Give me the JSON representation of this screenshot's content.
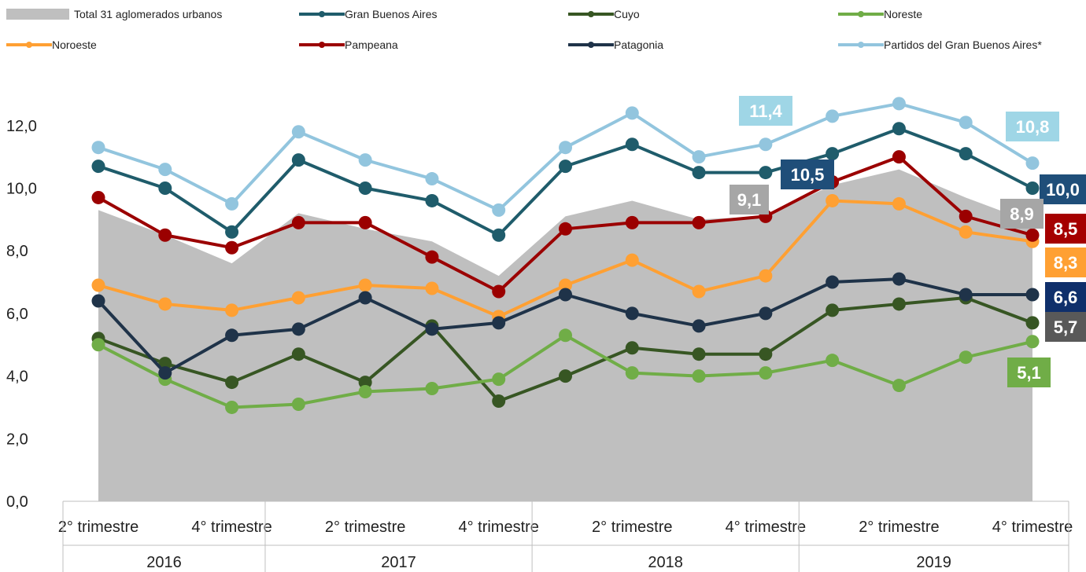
{
  "chart_data": {
    "type": "line",
    "title": "",
    "xlabel": "",
    "ylabel": "",
    "ylim": [
      0,
      12
    ],
    "y_ticks": [
      "0,0",
      "2,0",
      "4,0",
      "6,0",
      "8,0",
      "10,0",
      "12,0"
    ],
    "x_tick_labels": [
      "2° trimestre",
      "4° trimestre",
      "2° trimestre",
      "4° trimestre",
      "2° trimestre",
      "4° trimestre",
      "2° trimestre",
      "4° trimestre"
    ],
    "years": [
      "2016",
      "2017",
      "2018",
      "2019"
    ],
    "categories": [
      "2016 T2",
      "2016 T3",
      "2016 T4",
      "2017 T1",
      "2017 T2",
      "2017 T3",
      "2017 T4",
      "2018 T1",
      "2018 T2",
      "2018 T3",
      "2018 T4",
      "2019 T1",
      "2019 T2",
      "2019 T3",
      "2019 T4"
    ],
    "series": [
      {
        "name": "Total 31 aglomerados urbanos",
        "type": "area",
        "color": "#bfbfbf",
        "values": [
          9.3,
          8.5,
          7.6,
          9.2,
          8.7,
          8.3,
          7.2,
          9.1,
          9.6,
          9.0,
          9.1,
          10.1,
          10.6,
          9.7,
          8.9
        ]
      },
      {
        "name": "Gran Buenos Aires",
        "type": "line",
        "color": "#1f5c6b",
        "values": [
          10.7,
          10.0,
          8.6,
          10.9,
          10.0,
          9.6,
          8.5,
          10.7,
          11.4,
          10.5,
          10.5,
          11.1,
          11.9,
          11.1,
          10.0
        ]
      },
      {
        "name": "Cuyo",
        "type": "line",
        "color": "#375623",
        "values": [
          5.2,
          4.4,
          3.8,
          4.7,
          3.8,
          5.6,
          3.2,
          4.0,
          4.9,
          4.7,
          4.7,
          6.1,
          6.3,
          6.5,
          5.7
        ]
      },
      {
        "name": "Noreste",
        "type": "line",
        "color": "#70ad47",
        "values": [
          5.0,
          3.9,
          3.0,
          3.1,
          3.5,
          3.6,
          3.9,
          5.3,
          4.1,
          4.0,
          4.1,
          4.5,
          3.7,
          4.6,
          5.1
        ]
      },
      {
        "name": "Noroeste",
        "type": "line",
        "color": "#ffa033",
        "values": [
          6.9,
          6.3,
          6.1,
          6.5,
          6.9,
          6.8,
          5.9,
          6.9,
          7.7,
          6.7,
          7.2,
          9.6,
          9.5,
          8.6,
          8.3
        ]
      },
      {
        "name": "Pampeana",
        "type": "line",
        "color": "#9b0000",
        "values": [
          9.7,
          8.5,
          8.1,
          8.9,
          8.9,
          7.8,
          6.7,
          8.7,
          8.9,
          8.9,
          9.1,
          10.2,
          11.0,
          9.1,
          8.5
        ]
      },
      {
        "name": "Patagonia",
        "type": "line",
        "color": "#1f3349",
        "values": [
          6.4,
          4.1,
          5.3,
          5.5,
          6.5,
          5.5,
          5.7,
          6.6,
          6.0,
          5.6,
          6.0,
          7.0,
          7.1,
          6.6,
          6.6
        ]
      },
      {
        "name": "Partidos del Gran Buenos Aires*",
        "type": "line",
        "color": "#92c5de",
        "values": [
          11.3,
          10.6,
          9.5,
          11.8,
          10.9,
          10.3,
          9.3,
          11.3,
          12.4,
          11.0,
          11.4,
          12.3,
          12.7,
          12.1,
          10.8
        ]
      }
    ],
    "data_labels": [
      {
        "text": "11,4",
        "color": "#9fd6e6"
      },
      {
        "text": "10,8",
        "color": "#9fd6e6"
      },
      {
        "text": "10,5",
        "color": "#1f4e79"
      },
      {
        "text": "9,1",
        "color": "#a6a6a6"
      },
      {
        "text": "10,0",
        "color": "#1f4e79"
      },
      {
        "text": "8,9",
        "color": "#a6a6a6"
      },
      {
        "text": "8,5",
        "color": "#a50000"
      },
      {
        "text": "8,3",
        "color": "#ffa033"
      },
      {
        "text": "6,6",
        "color": "#0f2f6b"
      },
      {
        "text": "5,7",
        "color": "#595959"
      },
      {
        "text": "5,1",
        "color": "#70ad47"
      }
    ]
  }
}
